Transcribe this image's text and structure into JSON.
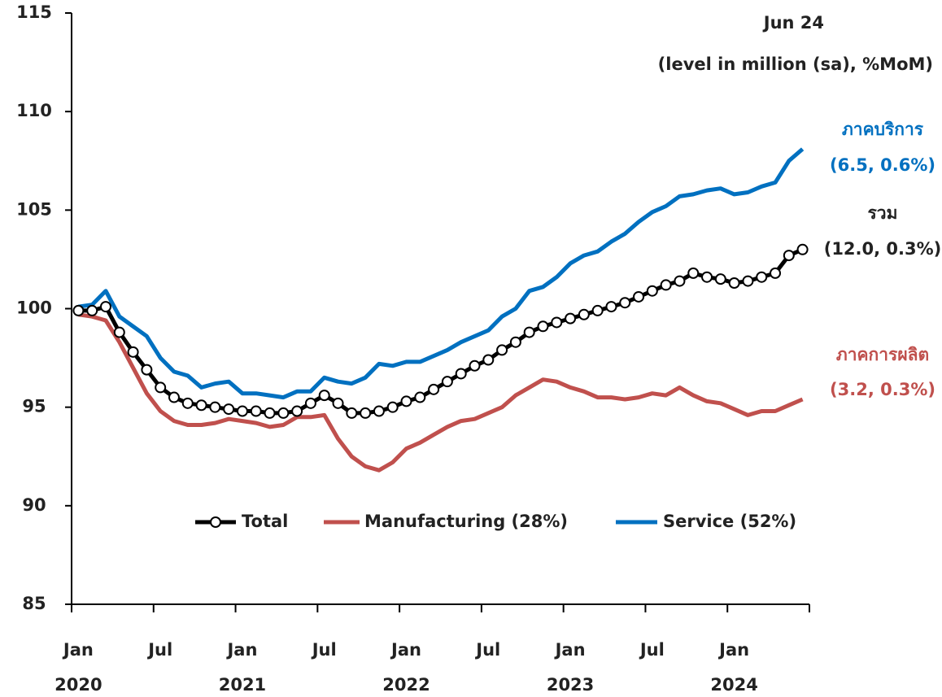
{
  "chart_data": {
    "type": "line",
    "categories": [
      "Jan",
      null,
      null,
      null,
      null,
      null,
      "Jul",
      null,
      null,
      null,
      null,
      null,
      "Jan",
      null,
      null,
      null,
      null,
      null,
      "Jul",
      null,
      null,
      null,
      null,
      null,
      "Jan",
      null,
      null,
      null,
      null,
      null,
      "Jul",
      null,
      null,
      null,
      null,
      null,
      "Jan",
      null,
      null,
      null,
      null,
      null,
      "Jul",
      null,
      null,
      null,
      null,
      null,
      "Jan",
      null,
      null,
      null,
      null,
      null
    ],
    "x_group_labels": [
      "2020",
      "2021",
      "2022",
      "2023",
      "2024"
    ],
    "ylim": [
      85,
      115
    ],
    "yticks": [
      85,
      90,
      95,
      100,
      105,
      110,
      115
    ],
    "series": [
      {
        "name": "Total",
        "color": "#000000",
        "markers": true,
        "values": [
          99.9,
          99.9,
          100.1,
          98.8,
          97.8,
          96.9,
          96.0,
          95.5,
          95.2,
          95.1,
          95.0,
          94.9,
          94.8,
          94.8,
          94.7,
          94.7,
          94.8,
          95.2,
          95.6,
          95.2,
          94.7,
          94.7,
          94.8,
          95.0,
          95.3,
          95.5,
          95.9,
          96.3,
          96.7,
          97.1,
          97.4,
          97.9,
          98.3,
          98.8,
          99.1,
          99.3,
          99.5,
          99.7,
          99.9,
          100.1,
          100.3,
          100.6,
          100.9,
          101.2,
          101.4,
          101.8,
          101.6,
          101.5,
          101.3,
          101.4,
          101.6,
          101.8,
          102.7,
          103.0
        ]
      },
      {
        "name": "Manufacturing (28%)",
        "color": "#c0504d",
        "markers": false,
        "values": [
          99.7,
          99.6,
          99.4,
          98.3,
          97.0,
          95.7,
          94.8,
          94.3,
          94.1,
          94.1,
          94.2,
          94.4,
          94.3,
          94.2,
          94.0,
          94.1,
          94.5,
          94.5,
          94.6,
          93.4,
          92.5,
          92.0,
          91.8,
          92.2,
          92.9,
          93.2,
          93.6,
          94.0,
          94.3,
          94.4,
          94.7,
          95.0,
          95.6,
          96.0,
          96.4,
          96.3,
          96.0,
          95.8,
          95.5,
          95.5,
          95.4,
          95.5,
          95.7,
          95.6,
          96.0,
          95.6,
          95.3,
          95.2,
          94.9,
          94.6,
          94.8,
          94.8,
          95.1,
          95.4
        ]
      },
      {
        "name": "Service (52%)",
        "color": "#0070c0",
        "markers": false,
        "values": [
          100.1,
          100.2,
          100.9,
          99.6,
          99.1,
          98.6,
          97.5,
          96.8,
          96.6,
          96.0,
          96.2,
          96.3,
          95.7,
          95.7,
          95.6,
          95.5,
          95.8,
          95.8,
          96.5,
          96.3,
          96.2,
          96.5,
          97.2,
          97.1,
          97.3,
          97.3,
          97.6,
          97.9,
          98.3,
          98.6,
          98.9,
          99.6,
          100.0,
          100.9,
          101.1,
          101.6,
          102.3,
          102.7,
          102.9,
          103.4,
          103.8,
          104.4,
          104.9,
          105.2,
          105.7,
          105.8,
          106.0,
          106.1,
          105.8,
          105.9,
          106.2,
          106.4,
          107.5,
          108.1
        ]
      }
    ],
    "annotations": [
      {
        "text": "Jun 24",
        "color": "#222222"
      },
      {
        "text": "(level in million (sa), %MoM)",
        "color": "#222222"
      },
      {
        "text": "ภาคบริการ",
        "color": "#0070c0"
      },
      {
        "text": "(6.5, 0.6%)",
        "color": "#0070c0"
      },
      {
        "text": "รวม",
        "color": "#222222"
      },
      {
        "text": "(12.0, 0.3%)",
        "color": "#222222"
      },
      {
        "text": "ภาคการผลิต",
        "color": "#c0504d"
      },
      {
        "text": "(3.2, 0.3%)",
        "color": "#c0504d"
      }
    ]
  }
}
